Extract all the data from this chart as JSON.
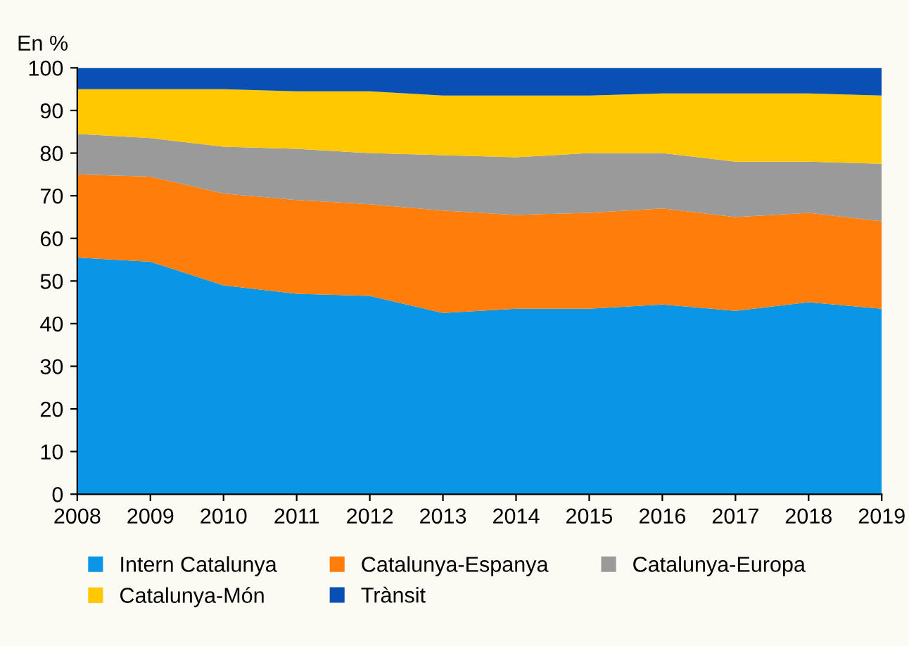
{
  "chart_data": {
    "type": "area",
    "stacked": true,
    "ylabel": "En %",
    "categories": [
      "2008",
      "2009",
      "2010",
      "2011",
      "2012",
      "2013",
      "2014",
      "2015",
      "2016",
      "2017",
      "2018",
      "2019"
    ],
    "series": [
      {
        "name": "Intern Catalunya",
        "color": "#0a96e6",
        "values": [
          55.5,
          54.5,
          49,
          47,
          46.5,
          42.5,
          43.5,
          43.5,
          44.5,
          43,
          45,
          43.5
        ]
      },
      {
        "name": "Catalunya-Espanya",
        "color": "#ff7d0a",
        "values": [
          19.5,
          20,
          21.5,
          22,
          21.5,
          24,
          22,
          22.5,
          22.5,
          22,
          21,
          20.5
        ]
      },
      {
        "name": "Catalunya-Europa",
        "color": "#9a9a9a",
        "values": [
          9.5,
          9,
          11,
          12,
          12,
          13,
          13.5,
          14,
          13,
          13,
          12,
          13.5
        ]
      },
      {
        "name": "Catalunya-Món",
        "color": "#ffc800",
        "values": [
          10.5,
          11.5,
          13.5,
          13.5,
          14.5,
          14,
          14.5,
          13.5,
          14,
          16,
          16,
          16
        ]
      },
      {
        "name": "Trànsit",
        "color": "#0a4fb4",
        "values": [
          5,
          5,
          5,
          5.5,
          5.5,
          6.5,
          6.5,
          6.5,
          6,
          6,
          6,
          6.5
        ]
      }
    ],
    "ylim": [
      0,
      100
    ],
    "yticks": [
      0,
      10,
      20,
      30,
      40,
      50,
      60,
      70,
      80,
      90,
      100
    ],
    "grid": false,
    "legend": "bottom"
  }
}
